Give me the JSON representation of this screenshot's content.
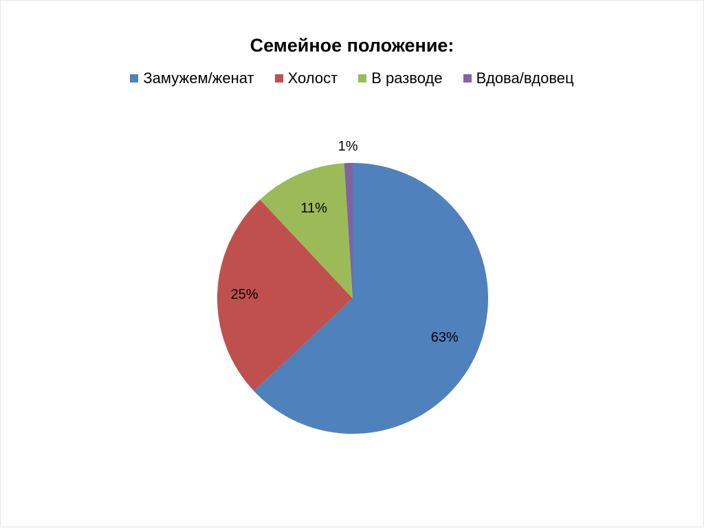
{
  "chart_data": {
    "type": "pie",
    "title": "Семейное положение:",
    "legend_position": "top",
    "categories": [
      "Замужем/женат",
      "Холост",
      "В разводе",
      "Вдова/вдовец"
    ],
    "values": [
      63,
      25,
      11,
      1
    ],
    "labels": [
      "63%",
      "25%",
      "11%",
      "1%"
    ],
    "colors": [
      "#4F81BD",
      "#C0504D",
      "#9BBB59",
      "#8064A2"
    ]
  }
}
